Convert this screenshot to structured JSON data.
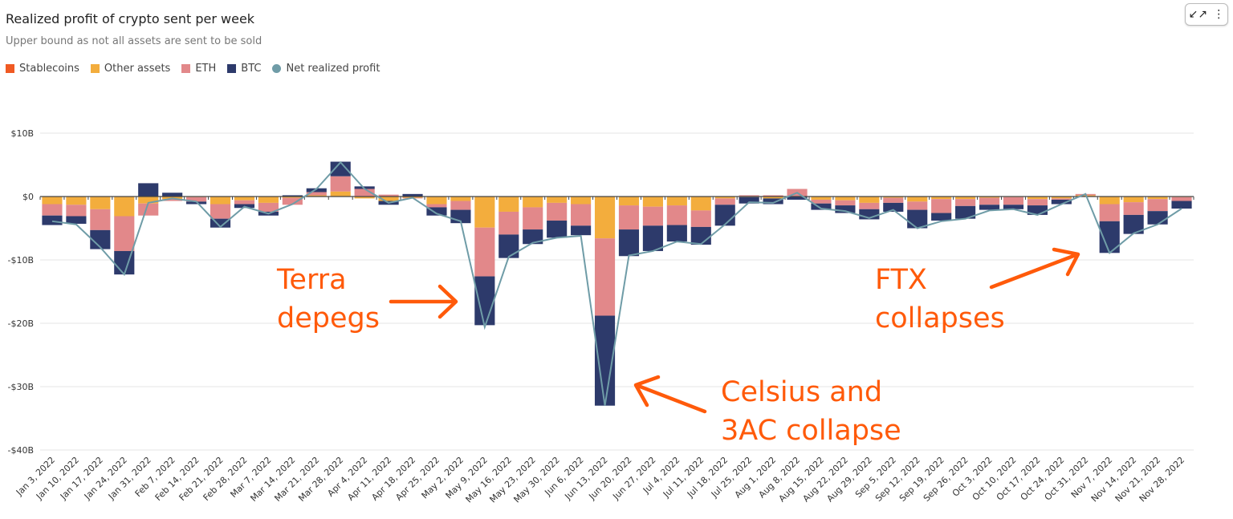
{
  "header": {
    "title": "Realized profit of crypto sent per week",
    "subtitle": "Upper bound as not all assets are sent to be sold"
  },
  "toolbar": {
    "minimize_icon": "minimize-icon",
    "more_icon": "more-vertical-icon"
  },
  "colors": {
    "Stablecoins": "#f05a23",
    "Other assets": "#f3ad3d",
    "ETH": "#e2888a",
    "BTC": "#2d3a6b",
    "Net realized profit": "#6f9ca7",
    "annotation": "#ff5a0a"
  },
  "chart_data": {
    "type": "bar",
    "title": "Realized profit of crypto sent per week",
    "subtitle": "Upper bound as not all assets are sent to be sold",
    "xlabel": "",
    "ylabel": "",
    "ylim": [
      -40,
      10
    ],
    "yticks": [
      10,
      0,
      -10,
      -20,
      -30,
      -40
    ],
    "ytick_labels": [
      "$10B",
      "$0",
      "-$10B",
      "-$20B",
      "-$30B",
      "-$40B"
    ],
    "grid": true,
    "legend_position": "top-left",
    "categories": [
      "Jan 3, 2022",
      "Jan 10, 2022",
      "Jan 17, 2022",
      "Jan 24, 2022",
      "Jan 31, 2022",
      "Feb 7, 2022",
      "Feb 14, 2022",
      "Feb 21, 2022",
      "Feb 28, 2022",
      "Mar 7, 2022",
      "Mar 14, 2022",
      "Mar 21, 2022",
      "Mar 28, 2022",
      "Apr 4, 2022",
      "Apr 11, 2022",
      "Apr 18, 2022",
      "Apr 25, 2022",
      "May 2, 2022",
      "May 9, 2022",
      "May 16, 2022",
      "May 23, 2022",
      "May 30, 2022",
      "Jun 6, 2022",
      "Jun 13, 2022",
      "Jun 20, 2022",
      "Jun 27, 2022",
      "Jul 4, 2022",
      "Jul 11, 2022",
      "Jul 18, 2022",
      "Jul 25, 2022",
      "Aug 1, 2022",
      "Aug 8, 2022",
      "Aug 15, 2022",
      "Aug 22, 2022",
      "Aug 29, 2022",
      "Sep 5, 2022",
      "Sep 12, 2022",
      "Sep 19, 2022",
      "Sep 26, 2022",
      "Oct 3, 2022",
      "Oct 10, 2022",
      "Oct 17, 2022",
      "Oct 24, 2022",
      "Oct 31, 2022",
      "Nov 7, 2022",
      "Nov 14, 2022",
      "Nov 21, 2022",
      "Nov 28, 2022"
    ],
    "series": [
      {
        "name": "Stablecoins",
        "type": "bar",
        "values": [
          0,
          0,
          0,
          0,
          0,
          0,
          0,
          0,
          0,
          0,
          0,
          0,
          0,
          0,
          0,
          0,
          0,
          0,
          0,
          0,
          0,
          0,
          0,
          0,
          0,
          0,
          0,
          0,
          0,
          0,
          0,
          0,
          0,
          0,
          0,
          0,
          0,
          0,
          0,
          0,
          0,
          0,
          0,
          0,
          0,
          0,
          0,
          0
        ]
      },
      {
        "name": "Other assets",
        "type": "bar",
        "values": [
          -1.2,
          -1.3,
          -2.0,
          -3.1,
          -1.1,
          -0.4,
          -0.1,
          -1.2,
          -0.6,
          -1.0,
          -0.2,
          0.2,
          0.8,
          -0.3,
          -0.7,
          -0.2,
          -1.2,
          -0.7,
          -4.9,
          -2.4,
          -1.7,
          -1.0,
          -1.2,
          -6.6,
          -1.4,
          -1.6,
          -1.4,
          -2.2,
          -0.3,
          -0.1,
          -0.3,
          0,
          -0.5,
          -0.6,
          -1.0,
          -0.2,
          -0.8,
          -0.4,
          -0.4,
          -0.2,
          -0.1,
          -0.4,
          -0.3,
          0.2,
          -1.2,
          -0.9,
          -0.4,
          -0.1
        ]
      },
      {
        "name": "ETH",
        "type": "bar",
        "values": [
          -1.8,
          -1.8,
          -3.3,
          -5.5,
          -1.9,
          -0.3,
          -0.7,
          -2.3,
          -0.6,
          -1.4,
          -1.1,
          0.5,
          2.4,
          1.2,
          0.3,
          -0.1,
          -0.5,
          -1.4,
          -7.7,
          -3.6,
          -3.5,
          -2.8,
          -3.4,
          -12.2,
          -3.8,
          -3.0,
          -3.1,
          -2.6,
          -1.0,
          0.2,
          0.2,
          1.2,
          -0.6,
          -0.8,
          -1.0,
          -0.8,
          -1.3,
          -2.2,
          -1.1,
          -1.1,
          -1.2,
          -1.0,
          -0.2,
          0.2,
          -2.7,
          -2.0,
          -1.9,
          -0.6
        ]
      },
      {
        "name": "BTC",
        "type": "bar",
        "values": [
          -1.5,
          -1.2,
          -3.0,
          -3.7,
          2.1,
          0.6,
          -0.4,
          -1.4,
          -0.6,
          -0.6,
          0.2,
          0.6,
          2.3,
          0.4,
          -0.6,
          0.4,
          -1.3,
          -2.1,
          -7.7,
          -3.7,
          -2.3,
          -2.7,
          -1.5,
          -14.2,
          -4.2,
          -4.0,
          -2.6,
          -2.8,
          -3.3,
          -1.0,
          -0.9,
          -0.5,
          -1.0,
          -1.2,
          -1.6,
          -1.4,
          -2.9,
          -1.2,
          -2.0,
          -0.8,
          -0.7,
          -1.5,
          -0.7,
          0,
          -5.0,
          -3.0,
          -2.1,
          -1.2
        ]
      },
      {
        "name": "Net realized profit",
        "type": "line",
        "values": [
          -3.9,
          -4.4,
          -8.0,
          -12.3,
          -1.0,
          -0.3,
          -0.8,
          -4.8,
          -1.6,
          -2.7,
          -1.2,
          1.2,
          5.4,
          1.2,
          -1.0,
          -0.2,
          -2.7,
          -3.9,
          -20.6,
          -9.5,
          -7.3,
          -6.5,
          -6.2,
          -33.0,
          -9.3,
          -8.6,
          -7.1,
          -7.5,
          -4.4,
          -0.9,
          -1.0,
          0.6,
          -1.9,
          -2.3,
          -3.4,
          -2.1,
          -5.0,
          -3.9,
          -3.5,
          -2.2,
          -2.0,
          -2.9,
          -1.2,
          0.4,
          -8.9,
          -5.8,
          -4.4,
          -1.9
        ]
      }
    ],
    "annotations": [
      {
        "text": [
          "Terra",
          "depegs"
        ],
        "points_to": "May 9, 2022"
      },
      {
        "text": [
          "Celsius and",
          "3AC collapse"
        ],
        "points_to": "Jun 13, 2022"
      },
      {
        "text": [
          "FTX",
          "collapses"
        ],
        "points_to": "Nov 7, 2022"
      }
    ]
  }
}
